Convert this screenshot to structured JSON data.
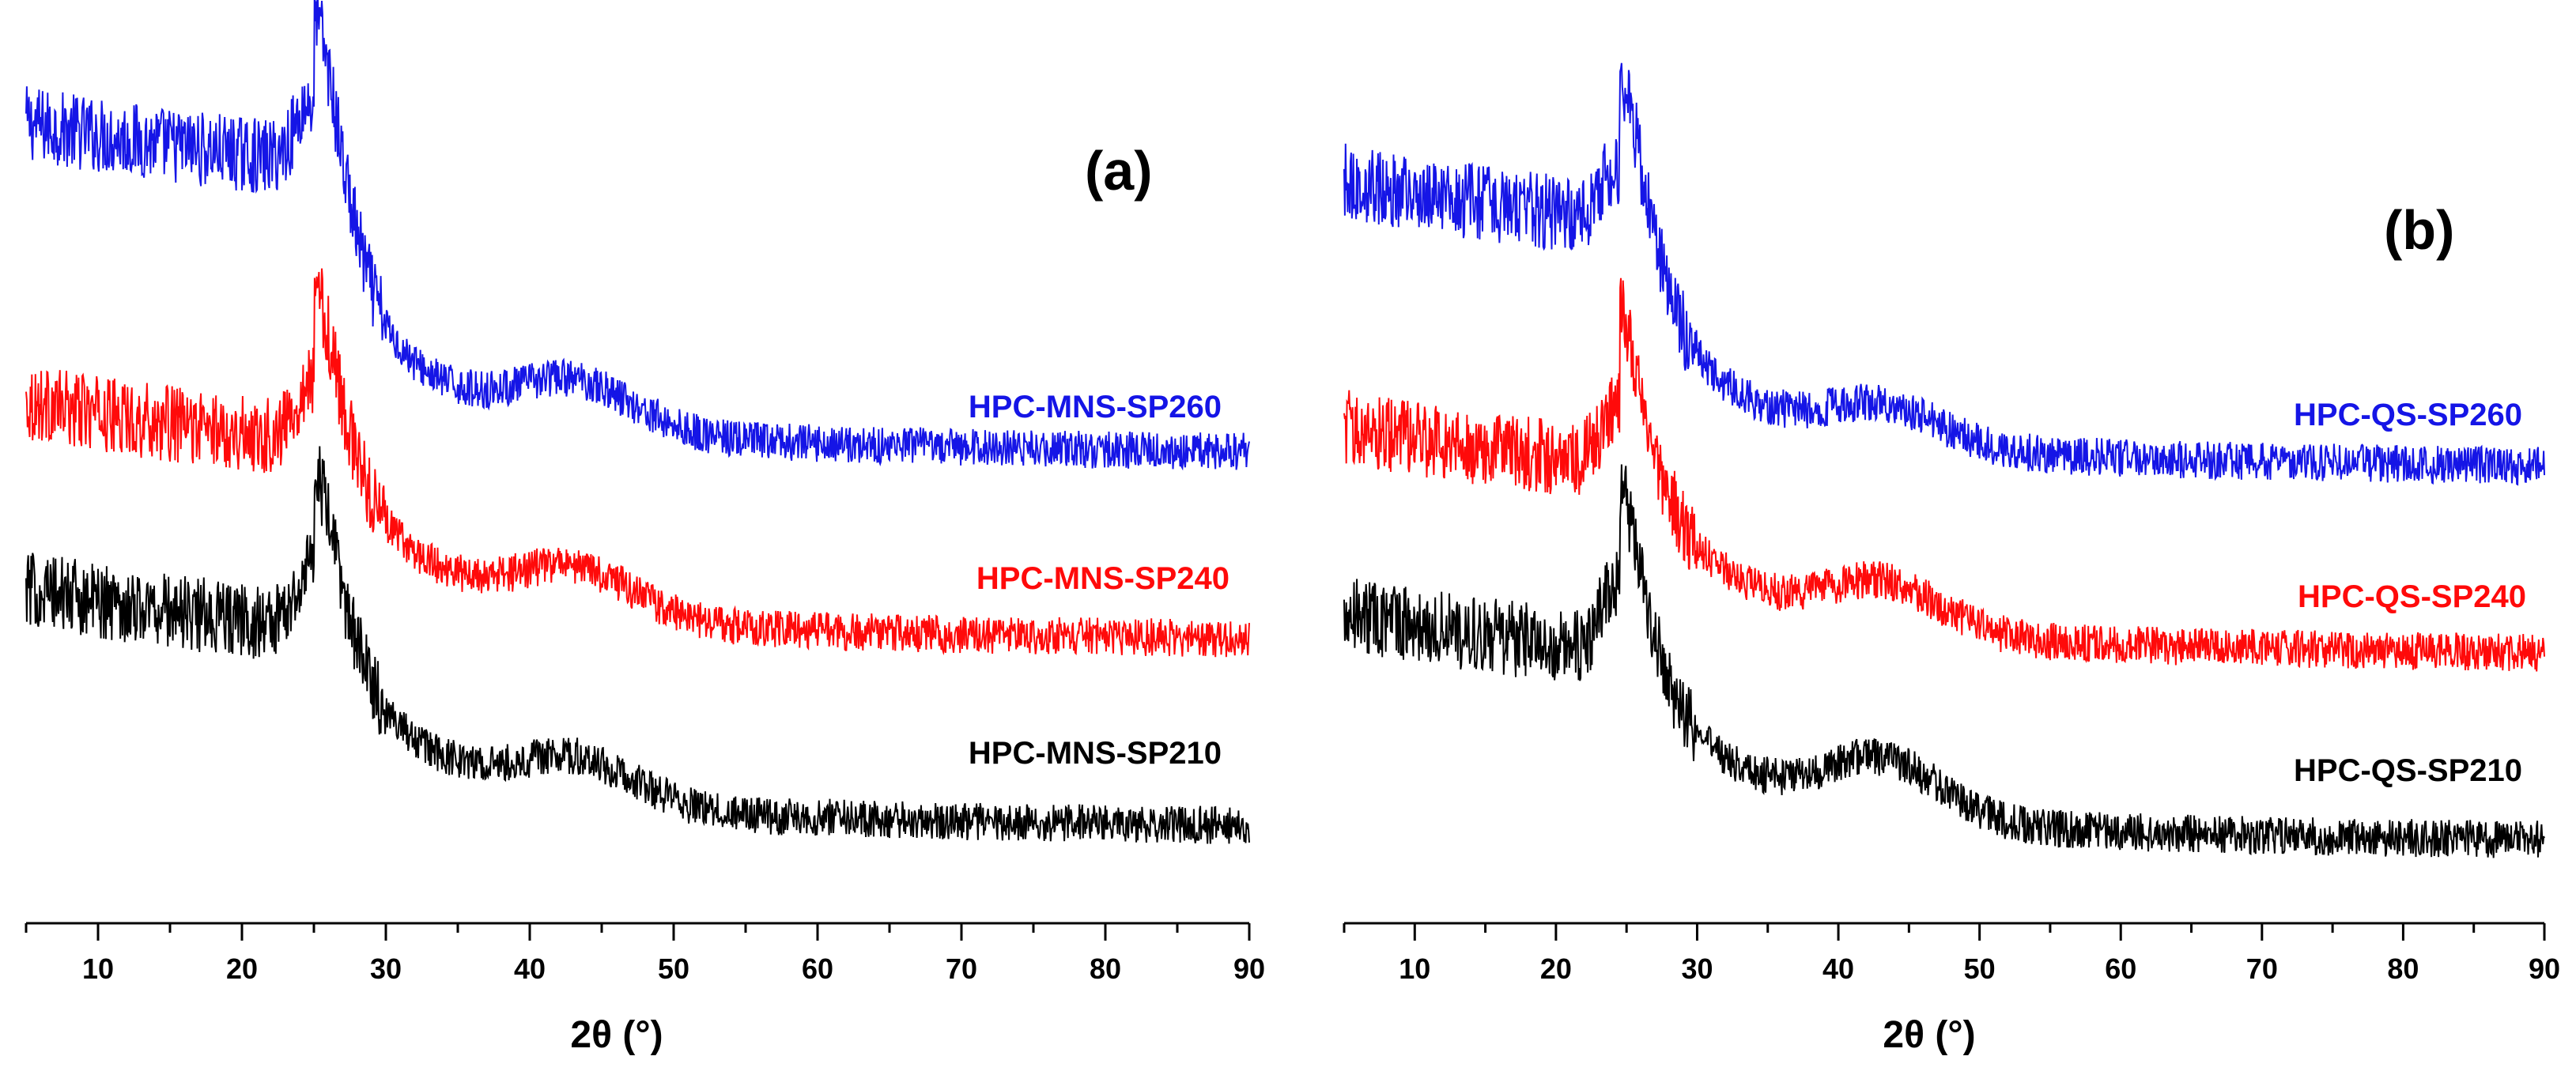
{
  "chart_data": [
    {
      "type": "line",
      "panel_label": "(a)",
      "xlabel": "2θ (°)",
      "xlim": [
        5,
        90
      ],
      "xticks": [
        10,
        20,
        30,
        40,
        50,
        60,
        70,
        80,
        90
      ],
      "ylabel": "",
      "y_ticks_shown": false,
      "series": [
        {
          "name": "HPC-MNS-SP260",
          "color": "#1515e6",
          "base": 1.1,
          "peak2theta": 25,
          "peak_height": 0.55,
          "low_angle_height": 0.75,
          "broad_hump_2theta": 43,
          "broad_hump_height": 0.15,
          "noise": 0.07
        },
        {
          "name": "HPC-MNS-SP240",
          "color": "#ff0a0a",
          "base": 0.55,
          "peak2theta": 25,
          "peak_height": 0.5,
          "low_angle_height": 0.48,
          "broad_hump_2theta": 43,
          "broad_hump_height": 0.15,
          "noise": 0.07
        },
        {
          "name": "HPC-MNS-SP210",
          "color": "#000000",
          "base": 0.0,
          "peak2theta": 25,
          "peak_height": 0.52,
          "low_angle_height": 0.48,
          "broad_hump_2theta": 43,
          "broad_hump_height": 0.14,
          "noise": 0.07
        }
      ]
    },
    {
      "type": "line",
      "panel_label": "(b)",
      "xlabel": "2θ (°)",
      "xlim": [
        5,
        90
      ],
      "xticks": [
        10,
        20,
        30,
        40,
        50,
        60,
        70,
        80,
        90
      ],
      "ylabel": "",
      "y_ticks_shown": false,
      "series": [
        {
          "name": "HPC-QS-SP260",
          "color": "#1515e6",
          "base": 1.1,
          "peak2theta": 24.5,
          "peak_height": 0.48,
          "low_angle_height": 0.62,
          "broad_hump_2theta": 43,
          "broad_hump_height": 0.12,
          "noise": 0.07
        },
        {
          "name": "HPC-QS-SP240",
          "color": "#ff0a0a",
          "base": 0.55,
          "peak2theta": 24.5,
          "peak_height": 0.48,
          "low_angle_height": 0.45,
          "broad_hump_2theta": 43,
          "broad_hump_height": 0.15,
          "noise": 0.07
        },
        {
          "name": "HPC-QS-SP210",
          "color": "#000000",
          "base": 0.0,
          "peak2theta": 24.5,
          "peak_height": 0.55,
          "low_angle_height": 0.45,
          "broad_hump_2theta": 43,
          "broad_hump_height": 0.18,
          "noise": 0.07
        }
      ]
    }
  ]
}
